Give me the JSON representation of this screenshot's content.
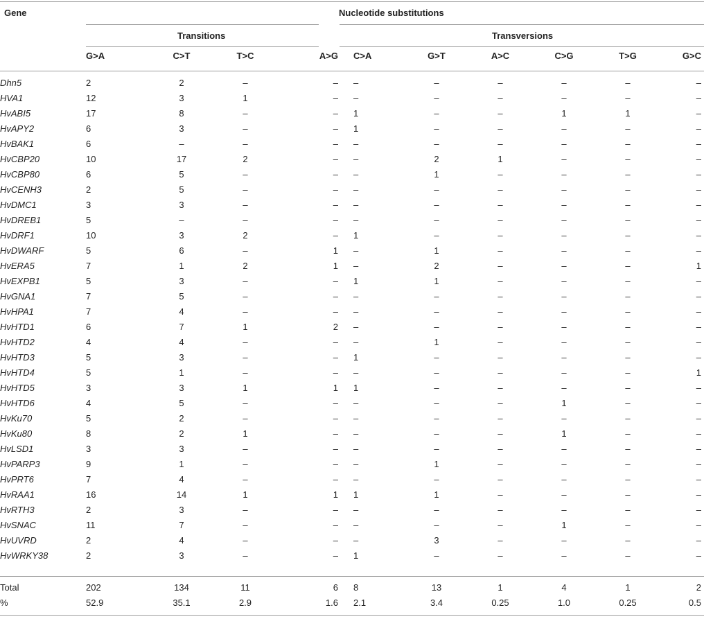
{
  "header": {
    "gene_label": "Gene",
    "title": "Nucleotide substitutions",
    "transitions_label": "Transitions",
    "transversions_label": "Transversions"
  },
  "columns": [
    "G>A",
    "C>T",
    "T>C",
    "A>G",
    "C>A",
    "G>T",
    "A>C",
    "C>G",
    "T>G",
    "G>C"
  ],
  "rows": [
    {
      "gene": "Dhn5",
      "values": [
        "2",
        "2",
        "–",
        "–",
        "–",
        "–",
        "–",
        "–",
        "–",
        "–"
      ]
    },
    {
      "gene": "HVA1",
      "values": [
        "12",
        "3",
        "1",
        "–",
        "–",
        "–",
        "–",
        "–",
        "–",
        "–"
      ]
    },
    {
      "gene": "HvABI5",
      "values": [
        "17",
        "8",
        "–",
        "–",
        "1",
        "–",
        "–",
        "1",
        "1",
        "–"
      ]
    },
    {
      "gene": "HvAPY2",
      "values": [
        "6",
        "3",
        "–",
        "–",
        "1",
        "–",
        "–",
        "–",
        "–",
        "–"
      ]
    },
    {
      "gene": "HvBAK1",
      "values": [
        "6",
        "–",
        "–",
        "–",
        "–",
        "–",
        "–",
        "–",
        "–",
        "–"
      ]
    },
    {
      "gene": "HvCBP20",
      "values": [
        "10",
        "17",
        "2",
        "–",
        "–",
        "2",
        "1",
        "–",
        "–",
        "–"
      ]
    },
    {
      "gene": "HvCBP80",
      "values": [
        "6",
        "5",
        "–",
        "–",
        "–",
        "1",
        "–",
        "–",
        "–",
        "–"
      ]
    },
    {
      "gene": "HvCENH3",
      "values": [
        "2",
        "5",
        "–",
        "–",
        "–",
        "–",
        "–",
        "–",
        "–",
        "–"
      ]
    },
    {
      "gene": "HvDMC1",
      "values": [
        "3",
        "3",
        "–",
        "–",
        "–",
        "–",
        "–",
        "–",
        "–",
        "–"
      ]
    },
    {
      "gene": "HvDREB1",
      "values": [
        "5",
        "–",
        "–",
        "–",
        "–",
        "–",
        "–",
        "–",
        "–",
        "–"
      ]
    },
    {
      "gene": "HvDRF1",
      "values": [
        "10",
        "3",
        "2",
        "–",
        "1",
        "–",
        "–",
        "–",
        "–",
        "–"
      ]
    },
    {
      "gene": "HvDWARF",
      "values": [
        "5",
        "6",
        "–",
        "1",
        "–",
        "1",
        "–",
        "–",
        "–",
        "–"
      ]
    },
    {
      "gene": "HvERA5",
      "values": [
        "7",
        "1",
        "2",
        "1",
        "–",
        "2",
        "–",
        "–",
        "–",
        "1"
      ]
    },
    {
      "gene": "HvEXPB1",
      "values": [
        "5",
        "3",
        "–",
        "–",
        "1",
        "1",
        "–",
        "–",
        "–",
        "–"
      ]
    },
    {
      "gene": "HvGNA1",
      "values": [
        "7",
        "5",
        "–",
        "–",
        "–",
        "–",
        "–",
        "–",
        "–",
        "–"
      ]
    },
    {
      "gene": "HvHPA1",
      "values": [
        "7",
        "4",
        "–",
        "–",
        "–",
        "–",
        "–",
        "–",
        "–",
        "–"
      ]
    },
    {
      "gene": "HvHTD1",
      "values": [
        "6",
        "7",
        "1",
        "2",
        "–",
        "–",
        "–",
        "–",
        "–",
        "–"
      ]
    },
    {
      "gene": "HvHTD2",
      "values": [
        "4",
        "4",
        "–",
        "–",
        "–",
        "1",
        "–",
        "–",
        "–",
        "–"
      ]
    },
    {
      "gene": "HvHTD3",
      "values": [
        "5",
        "3",
        "–",
        "–",
        "1",
        "–",
        "–",
        "–",
        "–",
        "–"
      ]
    },
    {
      "gene": "HvHTD4",
      "values": [
        "5",
        "1",
        "–",
        "–",
        "–",
        "–",
        "–",
        "–",
        "–",
        "1"
      ]
    },
    {
      "gene": "HvHTD5",
      "values": [
        "3",
        "3",
        "1",
        "1",
        "1",
        "–",
        "–",
        "–",
        "–",
        "–"
      ]
    },
    {
      "gene": "HvHTD6",
      "values": [
        "4",
        "5",
        "–",
        "–",
        "–",
        "–",
        "–",
        "1",
        "–",
        "–"
      ]
    },
    {
      "gene": "HvKu70",
      "values": [
        "5",
        "2",
        "–",
        "–",
        "–",
        "–",
        "–",
        "–",
        "–",
        "–"
      ]
    },
    {
      "gene": "HvKu80",
      "values": [
        "8",
        "2",
        "1",
        "–",
        "–",
        "–",
        "–",
        "1",
        "–",
        "–"
      ]
    },
    {
      "gene": "HvLSD1",
      "values": [
        "3",
        "3",
        "–",
        "–",
        "–",
        "–",
        "–",
        "–",
        "–",
        "–"
      ]
    },
    {
      "gene": "HvPARP3",
      "values": [
        "9",
        "1",
        "–",
        "–",
        "–",
        "1",
        "–",
        "–",
        "–",
        "–"
      ]
    },
    {
      "gene": "HvPRT6",
      "values": [
        "7",
        "4",
        "–",
        "–",
        "–",
        "–",
        "–",
        "–",
        "–",
        "–"
      ]
    },
    {
      "gene": "HvRAA1",
      "values": [
        "16",
        "14",
        "1",
        "1",
        "1",
        "1",
        "–",
        "–",
        "–",
        "–"
      ]
    },
    {
      "gene": "HvRTH3",
      "values": [
        "2",
        "3",
        "–",
        "–",
        "–",
        "–",
        "–",
        "–",
        "–",
        "–"
      ]
    },
    {
      "gene": "HvSNAC",
      "values": [
        "11",
        "7",
        "–",
        "–",
        "–",
        "–",
        "–",
        "1",
        "–",
        "–"
      ]
    },
    {
      "gene": "HvUVRD",
      "values": [
        "2",
        "4",
        "–",
        "–",
        "–",
        "3",
        "–",
        "–",
        "–",
        "–"
      ]
    },
    {
      "gene": "HvWRKY38",
      "values": [
        "2",
        "3",
        "–",
        "–",
        "1",
        "–",
        "–",
        "–",
        "–",
        "–"
      ]
    }
  ],
  "summary": [
    {
      "label": "Total",
      "values": [
        "202",
        "134",
        "11",
        "6",
        "8",
        "13",
        "1",
        "4",
        "1",
        "2"
      ]
    },
    {
      "label": "%",
      "values": [
        "52.9",
        "35.1",
        "2.9",
        "1.6",
        "2.1",
        "3.4",
        "0.25",
        "1.0",
        "0.25",
        "0.5"
      ]
    }
  ]
}
